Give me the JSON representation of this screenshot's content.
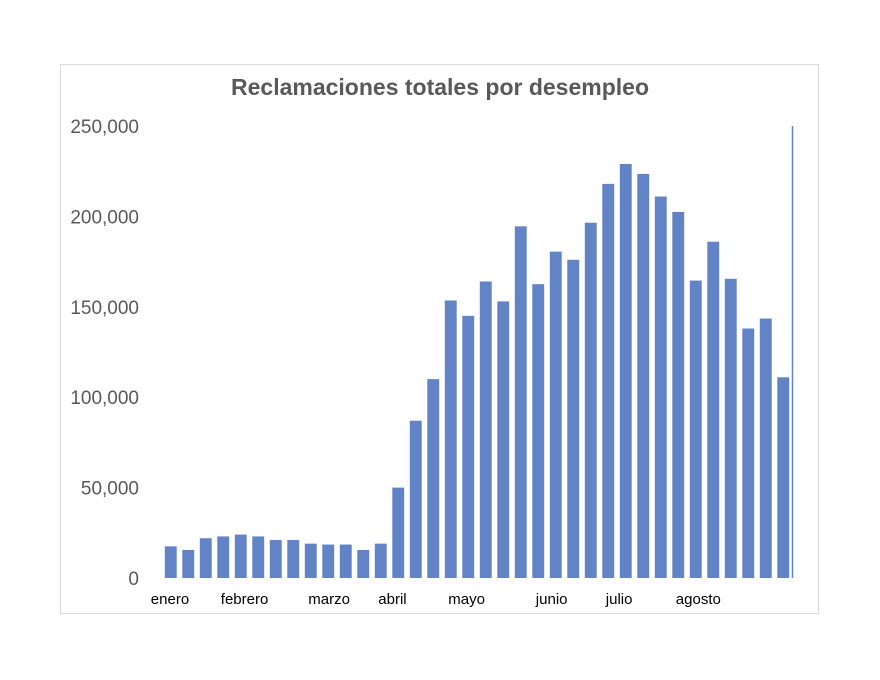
{
  "chart_data": {
    "type": "bar",
    "title": "Reclamaciones totales por desempleo",
    "xlabel": "",
    "ylabel": "",
    "ylim": [
      0,
      250000
    ],
    "yticks": [
      0,
      50000,
      100000,
      150000,
      200000,
      250000
    ],
    "ytick_labels": [
      "0",
      "50,000",
      "100,000",
      "150,000",
      "200,000",
      "250,000"
    ],
    "month_labels": [
      {
        "label": "enero",
        "bar_index": 0
      },
      {
        "label": "febrero",
        "bar_index": 4
      },
      {
        "label": "marzo",
        "bar_index": 9
      },
      {
        "label": "abril",
        "bar_index": 13
      },
      {
        "label": "mayo",
        "bar_index": 17
      },
      {
        "label": "junio",
        "bar_index": 22
      },
      {
        "label": "julio",
        "bar_index": 26
      },
      {
        "label": "agosto",
        "bar_index": 30
      }
    ],
    "values": [
      17500,
      15500,
      22000,
      23000,
      24000,
      23000,
      21000,
      21000,
      19000,
      18500,
      18500,
      15500,
      19000,
      50000,
      87000,
      110000,
      153500,
      145000,
      164000,
      153000,
      194500,
      162500,
      180500,
      176000,
      196500,
      218000,
      229000,
      223500,
      211000,
      202500,
      164500,
      186000,
      165500,
      138000,
      143500,
      111000
    ],
    "grid": false,
    "legend": "none",
    "bar_color": "#6283c5"
  }
}
